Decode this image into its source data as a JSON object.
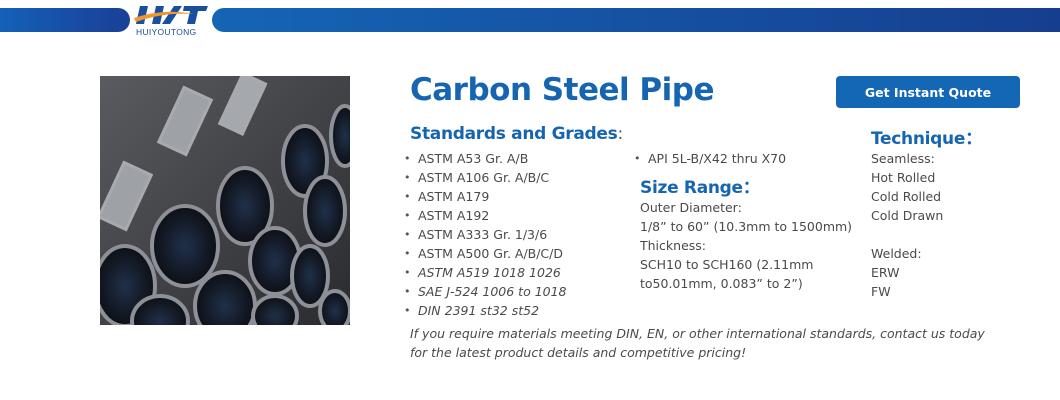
{
  "header": {
    "brand": "HUIYOUTONG",
    "logo_letters": "HYT",
    "accent": "#1565b0"
  },
  "product": {
    "title": "Carbon Steel Pipe",
    "quote_button": "Get Instant Quote"
  },
  "standards": {
    "heading": "Standards and Grades",
    "colon": ":",
    "items": [
      "ASTM A53 Gr. A/B",
      "ASTM A106 Gr. A/B/C",
      "ASTM A179",
      "ASTM A192",
      "ASTM A333 Gr. 1/3/6",
      "ASTM A500 Gr. A/B/C/D",
      "ASTM A519 1018 1026",
      "SAE J-524 1006 to 1018",
      "DIN 2391 st32 st52",
      "API 5L-B/X42 thru X70"
    ]
  },
  "size": {
    "heading": "Size Range",
    "colon": "：",
    "od_label": "Outer Diameter:",
    "od_value": "1/8” to 60” (10.3mm to 1500mm)",
    "th_label": "Thickness:",
    "th_value1": "SCH10 to SCH160 (2.11mm",
    "th_value2": "to50.01mm, 0.083” to 2”)"
  },
  "technique": {
    "heading": "Technique",
    "colon": "：",
    "seamless": "Seamless:",
    "seamless_items": [
      "Hot Rolled",
      "Cold Rolled",
      "Cold Drawn"
    ],
    "welded": "Welded:",
    "welded_items": [
      "ERW",
      "FW"
    ]
  },
  "note": {
    "line1": "If you require materials meeting DIN, EN, or other international standards, contact us today",
    "line2": "for the latest product details and competitive pricing!"
  }
}
